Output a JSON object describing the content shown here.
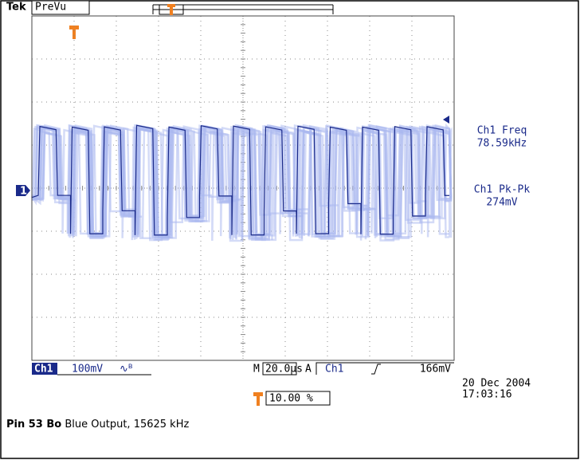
{
  "header": {
    "brand": "Tek",
    "mode": "PreVu"
  },
  "channel_marker": "1",
  "measurements": [
    {
      "label": "Ch1 Freq",
      "value": "78.59kHz"
    },
    {
      "label": "Ch1 Pk-Pk",
      "value": "274mV"
    }
  ],
  "status": {
    "channel": "Ch1",
    "scale": "100mV",
    "timebase_prefix": "M",
    "timebase": "20.0µs",
    "trigger_prefix": "A",
    "trigger_channel": "Ch1",
    "trigger_level": "166mV"
  },
  "trigger_position": "10.00 %",
  "timestamp": {
    "date": "20 Dec  2004",
    "time": "17:03:16"
  },
  "caption": {
    "pin": "Pin 53 Bo",
    "description": " Blue Output, 15625 kHz"
  }
}
